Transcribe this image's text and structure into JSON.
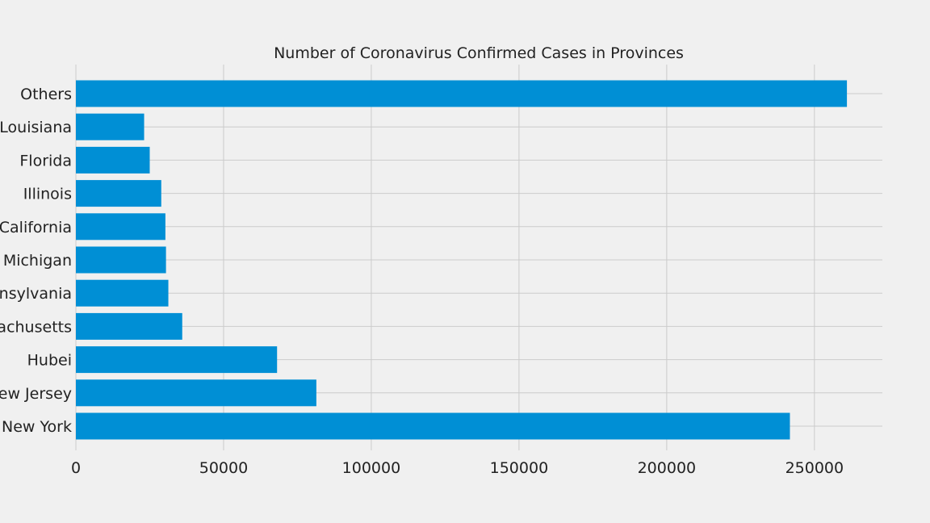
{
  "chart_data": {
    "type": "bar",
    "orientation": "horizontal",
    "title": "Number of Coronavirus Confirmed Cases in Provinces",
    "xlabel": "",
    "ylabel": "",
    "categories": [
      "New York",
      "New Jersey",
      "Hubei",
      "Massachusetts",
      "Pennsylvania",
      "Michigan",
      "California",
      "Illinois",
      "Florida",
      "Louisiana",
      "Others"
    ],
    "values": [
      241700,
      81400,
      68100,
      36000,
      31300,
      30500,
      30300,
      28900,
      25000,
      23100,
      261000
    ],
    "xlim": [
      0,
      273000
    ],
    "x_ticks": [
      0,
      50000,
      100000,
      150000,
      200000,
      250000
    ],
    "x_tick_labels": [
      "0",
      "50000",
      "100000",
      "150000",
      "200000",
      "250000"
    ],
    "grid": true,
    "colors": {
      "bar": "#008fd5",
      "background": "#f0f0f0",
      "grid": "#cbcbcb",
      "text": "#222222"
    }
  }
}
